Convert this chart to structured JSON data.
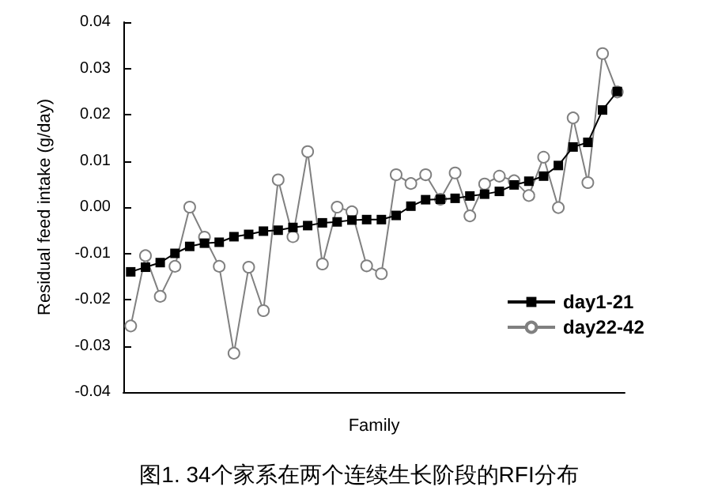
{
  "chart_data": {
    "type": "line",
    "title": "图1. 34个家系在两个连续生长阶段的RFI分布",
    "xlabel": "Family",
    "ylabel": "Residual feed intake (g/day)",
    "categories": [
      null,
      null,
      null,
      null,
      null,
      null,
      null,
      null,
      null,
      null,
      null,
      null,
      null,
      null,
      null,
      null,
      null,
      null,
      null,
      null,
      null,
      null,
      null,
      null,
      null,
      null,
      null,
      null,
      null,
      null,
      null,
      null,
      null,
      null
    ],
    "series": [
      {
        "name": "day1-21",
        "color": "#000000",
        "marker": "square",
        "values": [
          -0.014,
          -0.013,
          -0.012,
          -0.01,
          -0.0085,
          -0.0078,
          -0.0076,
          -0.0064,
          -0.0059,
          -0.0052,
          -0.005,
          -0.0044,
          -0.004,
          -0.0034,
          -0.0032,
          -0.0028,
          -0.0027,
          -0.0027,
          -0.0018,
          0.0002,
          0.0016,
          0.0017,
          0.0019,
          0.0024,
          0.0028,
          0.0034,
          0.0048,
          0.0056,
          0.0067,
          0.009,
          0.013,
          0.014,
          0.021,
          0.025
        ]
      },
      {
        "name": "day22-42",
        "color": "#808080",
        "marker": "circle",
        "values": [
          -0.0257,
          -0.0105,
          -0.0193,
          -0.0128,
          0.0,
          -0.0065,
          -0.0128,
          -0.0316,
          -0.013,
          -0.0224,
          0.0059,
          -0.0064,
          0.012,
          -0.0123,
          0.0,
          -0.001,
          -0.0127,
          -0.0144,
          0.007,
          0.0051,
          0.007,
          0.0017,
          0.0074,
          -0.0019,
          0.005,
          0.0067,
          0.0057,
          0.0025,
          0.0108,
          -0.0001,
          0.0193,
          0.0053,
          0.0332,
          0.0249
        ]
      }
    ],
    "ylim": [
      -0.04,
      0.04
    ],
    "yticks": [
      {
        "value": -0.04,
        "label": "-0.04"
      },
      {
        "value": -0.03,
        "label": "-0.03"
      },
      {
        "value": -0.02,
        "label": "-0.02"
      },
      {
        "value": -0.01,
        "label": "-0.01"
      },
      {
        "value": 0,
        "label": "0.00"
      },
      {
        "value": 0.01,
        "label": "0.01"
      },
      {
        "value": 0.02,
        "label": "0.02"
      },
      {
        "value": 0.03,
        "label": "0.03"
      },
      {
        "value": 0.04,
        "label": "0.04"
      }
    ],
    "tick_labels": "y",
    "legend": "bottom right",
    "line_style": "solid"
  }
}
